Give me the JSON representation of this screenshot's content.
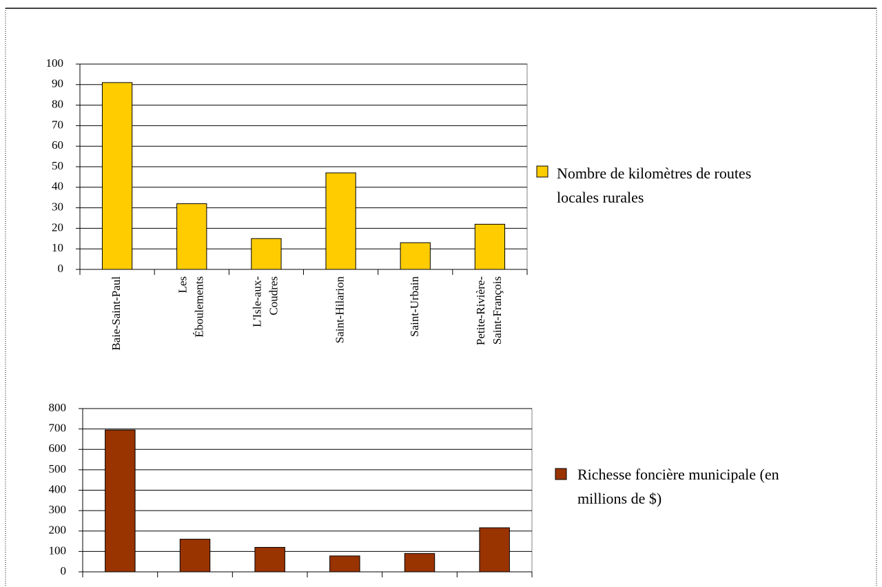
{
  "chart_data": [
    {
      "type": "bar",
      "categories": [
        "Baie-Saint-Paul",
        "Les Éboulements",
        "L'Isle-aux-Coudres",
        "Saint-Hilarion",
        "Saint-Urbain",
        "Petite-Rivière-Saint-François"
      ],
      "series": [
        {
          "name": "Nombre de kilomètres de routes locales rurales",
          "color": "#ffcc00",
          "values": [
            91,
            32,
            15,
            47,
            13,
            22
          ]
        }
      ],
      "ylim": [
        0,
        100
      ],
      "yticks": [
        0,
        10,
        20,
        30,
        40,
        50,
        60,
        70,
        80,
        90,
        100
      ],
      "grid": true,
      "legend": "right"
    },
    {
      "type": "bar",
      "series": [
        {
          "name": "Richesse foncière municipale (en millions de $)",
          "color": "#993300",
          "values": [
            695,
            160,
            120,
            78,
            90,
            216
          ]
        }
      ],
      "ylim": [
        0,
        800
      ],
      "yticks": [
        0,
        100,
        200,
        300,
        400,
        500,
        600,
        700,
        800
      ],
      "grid": true,
      "legend": "right"
    }
  ]
}
